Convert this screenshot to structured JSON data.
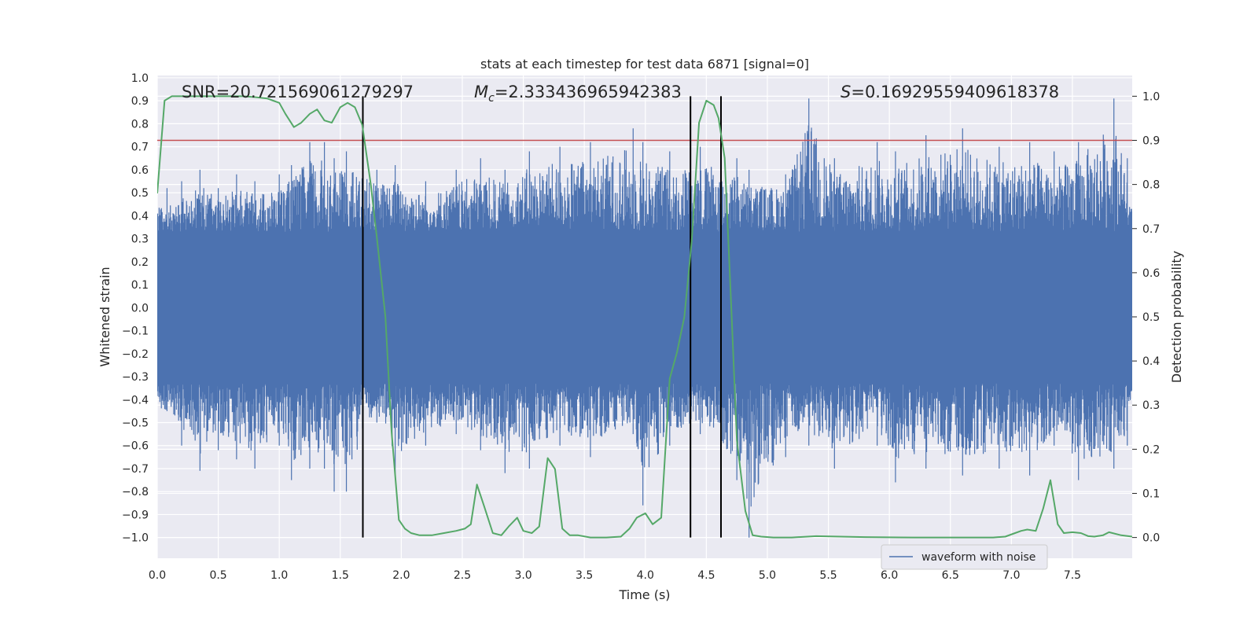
{
  "chart_data": {
    "type": "line",
    "title": "stats at each timestep for test data 6871 [signal=0]",
    "xlabel": "Time (s)",
    "ylabel": "Whitened strain",
    "y2label": "Detection probability",
    "xlim": [
      0.0,
      7.99
    ],
    "ylim": [
      -1.09,
      1.01
    ],
    "y2lim": [
      -0.047,
      1.047
    ],
    "xticks": [
      "0.0",
      "0.5",
      "1.0",
      "1.5",
      "2.0",
      "2.5",
      "3.0",
      "3.5",
      "4.0",
      "4.5",
      "5.0",
      "5.5",
      "6.0",
      "6.5",
      "7.0",
      "7.5"
    ],
    "yticks": [
      "1.0",
      "0.9",
      "0.8",
      "0.7",
      "0.6",
      "0.5",
      "0.4",
      "0.3",
      "0.2",
      "0.1",
      "0.0",
      "-0.1",
      "-0.2",
      "-0.3",
      "-0.4",
      "-0.5",
      "-0.6",
      "-0.7",
      "-0.8",
      "-0.9",
      "-1.0"
    ],
    "y2ticks": [
      "1.0",
      "0.9",
      "0.8",
      "0.7",
      "0.6",
      "0.5",
      "0.4",
      "0.3",
      "0.2",
      "0.1",
      "0.0"
    ],
    "annotations": {
      "snr": "SNR=20.721569061279297",
      "mc_symbol": "M",
      "mc_sub": "c",
      "mc_value": "=2.333436965942383",
      "s_symbol": "S",
      "s_value": "=0.16929559409618378"
    },
    "threshold": {
      "name": "detection threshold",
      "value": 0.9,
      "color": "#c44e52"
    },
    "vlines": [
      1.685,
      4.37,
      4.62
    ],
    "legend": {
      "label": "waveform with noise",
      "loc": "lower right"
    },
    "series": [
      {
        "name": "waveform with noise",
        "axis": "left",
        "color": "#4c72b0",
        "band": {
          "upper": 0.33,
          "lower": -0.33
        },
        "extremes": [
          [
            0.08,
            0.52,
            -0.45
          ],
          [
            0.2,
            0.55,
            -0.6
          ],
          [
            0.35,
            0.6,
            -0.71
          ],
          [
            0.5,
            0.52,
            -0.62
          ],
          [
            0.65,
            0.58,
            -0.66
          ],
          [
            0.8,
            0.55,
            -0.7
          ],
          [
            1.0,
            0.58,
            -0.6
          ],
          [
            1.1,
            0.62,
            -0.75
          ],
          [
            1.25,
            0.72,
            -0.7
          ],
          [
            1.37,
            0.72,
            -0.7
          ],
          [
            1.45,
            0.65,
            -0.8
          ],
          [
            1.55,
            0.68,
            -0.8
          ],
          [
            1.8,
            0.6,
            -0.5
          ],
          [
            1.95,
            0.62,
            -0.73
          ],
          [
            2.2,
            0.55,
            -0.6
          ],
          [
            2.45,
            0.6,
            -0.55
          ],
          [
            2.65,
            0.65,
            -0.62
          ],
          [
            2.85,
            0.6,
            -0.72
          ],
          [
            3.05,
            0.68,
            -0.7
          ],
          [
            3.3,
            0.7,
            -0.6
          ],
          [
            3.55,
            0.72,
            -0.65
          ],
          [
            3.9,
            0.78,
            -0.55
          ],
          [
            3.98,
            0.72,
            -0.86
          ],
          [
            4.2,
            0.68,
            -0.6
          ],
          [
            4.45,
            0.7,
            -0.55
          ],
          [
            4.75,
            0.65,
            -0.75
          ],
          [
            4.85,
            0.6,
            -1.0
          ],
          [
            5.15,
            0.58,
            -0.65
          ],
          [
            5.34,
            0.91,
            -0.6
          ],
          [
            5.55,
            0.65,
            -0.7
          ],
          [
            5.9,
            0.72,
            -0.6
          ],
          [
            6.05,
            0.68,
            -0.76
          ],
          [
            6.3,
            0.75,
            -0.7
          ],
          [
            6.6,
            0.78,
            -0.73
          ],
          [
            6.9,
            0.7,
            -0.7
          ],
          [
            7.15,
            0.72,
            -0.73
          ],
          [
            7.35,
            0.68,
            -0.6
          ],
          [
            7.55,
            0.72,
            -0.75
          ],
          [
            7.84,
            0.91,
            -0.7
          ],
          [
            7.95,
            0.65,
            -0.6
          ]
        ]
      },
      {
        "name": "Detection probability",
        "axis": "right",
        "color": "#55a868",
        "x": [
          0.0,
          0.06,
          0.12,
          0.2,
          0.3,
          0.5,
          0.7,
          0.8,
          0.9,
          0.95,
          1.0,
          1.05,
          1.12,
          1.18,
          1.25,
          1.31,
          1.37,
          1.43,
          1.5,
          1.56,
          1.62,
          1.68,
          1.75,
          1.8,
          1.87,
          1.92,
          1.98,
          2.03,
          2.08,
          2.15,
          2.25,
          2.35,
          2.45,
          2.52,
          2.57,
          2.62,
          2.68,
          2.75,
          2.82,
          2.88,
          2.95,
          3.0,
          3.07,
          3.13,
          3.2,
          3.26,
          3.32,
          3.38,
          3.45,
          3.55,
          3.68,
          3.8,
          3.87,
          3.93,
          4.0,
          4.06,
          4.13,
          4.2,
          4.26,
          4.32,
          4.38,
          4.44,
          4.5,
          4.56,
          4.6,
          4.65,
          4.7,
          4.75,
          4.82,
          4.88,
          4.95,
          5.05,
          5.2,
          5.4,
          5.8,
          6.2,
          6.6,
          6.85,
          6.95,
          7.03,
          7.08,
          7.13,
          7.2,
          7.26,
          7.32,
          7.38,
          7.43,
          7.5,
          7.57,
          7.63,
          7.68,
          7.75,
          7.8,
          7.9,
          7.99
        ],
        "y": [
          0.78,
          0.99,
          1.0,
          1.0,
          1.0,
          1.0,
          1.0,
          0.998,
          0.995,
          0.99,
          0.985,
          0.96,
          0.93,
          0.94,
          0.96,
          0.97,
          0.945,
          0.94,
          0.975,
          0.985,
          0.975,
          0.935,
          0.8,
          0.68,
          0.5,
          0.24,
          0.04,
          0.02,
          0.01,
          0.005,
          0.005,
          0.01,
          0.015,
          0.02,
          0.03,
          0.12,
          0.07,
          0.01,
          0.005,
          0.025,
          0.045,
          0.015,
          0.01,
          0.025,
          0.18,
          0.155,
          0.02,
          0.005,
          0.005,
          0.0,
          0.0,
          0.002,
          0.02,
          0.045,
          0.055,
          0.03,
          0.045,
          0.36,
          0.42,
          0.5,
          0.67,
          0.94,
          0.99,
          0.98,
          0.95,
          0.86,
          0.55,
          0.22,
          0.06,
          0.005,
          0.002,
          0.0,
          0.0,
          0.003,
          0.001,
          0.0,
          0.0,
          0.0,
          0.002,
          0.01,
          0.015,
          0.018,
          0.015,
          0.065,
          0.13,
          0.03,
          0.01,
          0.012,
          0.01,
          0.003,
          0.002,
          0.005,
          0.012,
          0.005,
          0.002
        ]
      }
    ]
  }
}
